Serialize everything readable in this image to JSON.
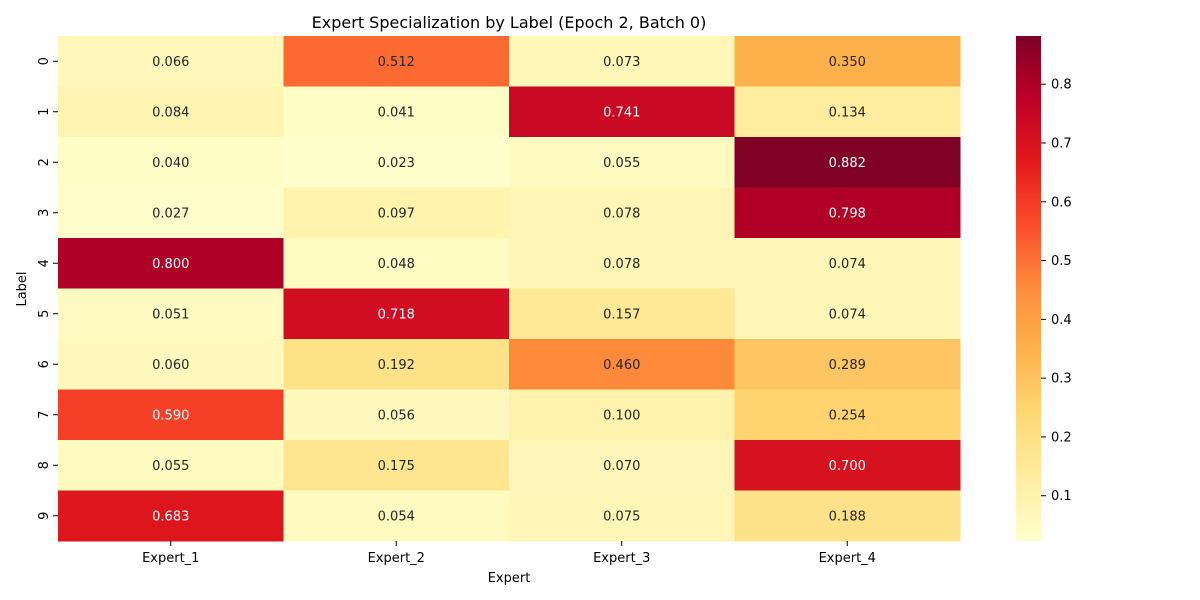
{
  "chart_data": {
    "type": "heatmap",
    "title": "Expert Specialization by Label (Epoch 2, Batch 0)",
    "xlabel": "Expert",
    "ylabel": "Label",
    "x_categories": [
      "Expert_1",
      "Expert_2",
      "Expert_3",
      "Expert_4"
    ],
    "y_categories": [
      "0",
      "1",
      "2",
      "3",
      "4",
      "5",
      "6",
      "7",
      "8",
      "9"
    ],
    "values": [
      [
        0.066,
        0.512,
        0.073,
        0.35
      ],
      [
        0.084,
        0.041,
        0.741,
        0.134
      ],
      [
        0.04,
        0.023,
        0.055,
        0.882
      ],
      [
        0.027,
        0.097,
        0.078,
        0.798
      ],
      [
        0.8,
        0.048,
        0.078,
        0.074
      ],
      [
        0.051,
        0.718,
        0.157,
        0.074
      ],
      [
        0.06,
        0.192,
        0.46,
        0.289
      ],
      [
        0.59,
        0.056,
        0.1,
        0.254
      ],
      [
        0.055,
        0.175,
        0.07,
        0.7
      ],
      [
        0.683,
        0.054,
        0.075,
        0.188
      ]
    ],
    "value_format": "0.000",
    "colormap": "YlOrRd",
    "colorbar": {
      "range": [
        0.023,
        0.882
      ],
      "ticks": [
        0.1,
        0.2,
        0.3,
        0.4,
        0.5,
        0.6,
        0.7,
        0.8
      ],
      "tick_labels": [
        "0.1",
        "0.2",
        "0.3",
        "0.4",
        "0.5",
        "0.6",
        "0.7",
        "0.8"
      ]
    },
    "colormap_stops": [
      "#ffffcc",
      "#ffeda0",
      "#fed976",
      "#feb24c",
      "#fd8d3c",
      "#fc4e2a",
      "#e31a1c",
      "#bd0026",
      "#800026"
    ],
    "grid": false
  }
}
